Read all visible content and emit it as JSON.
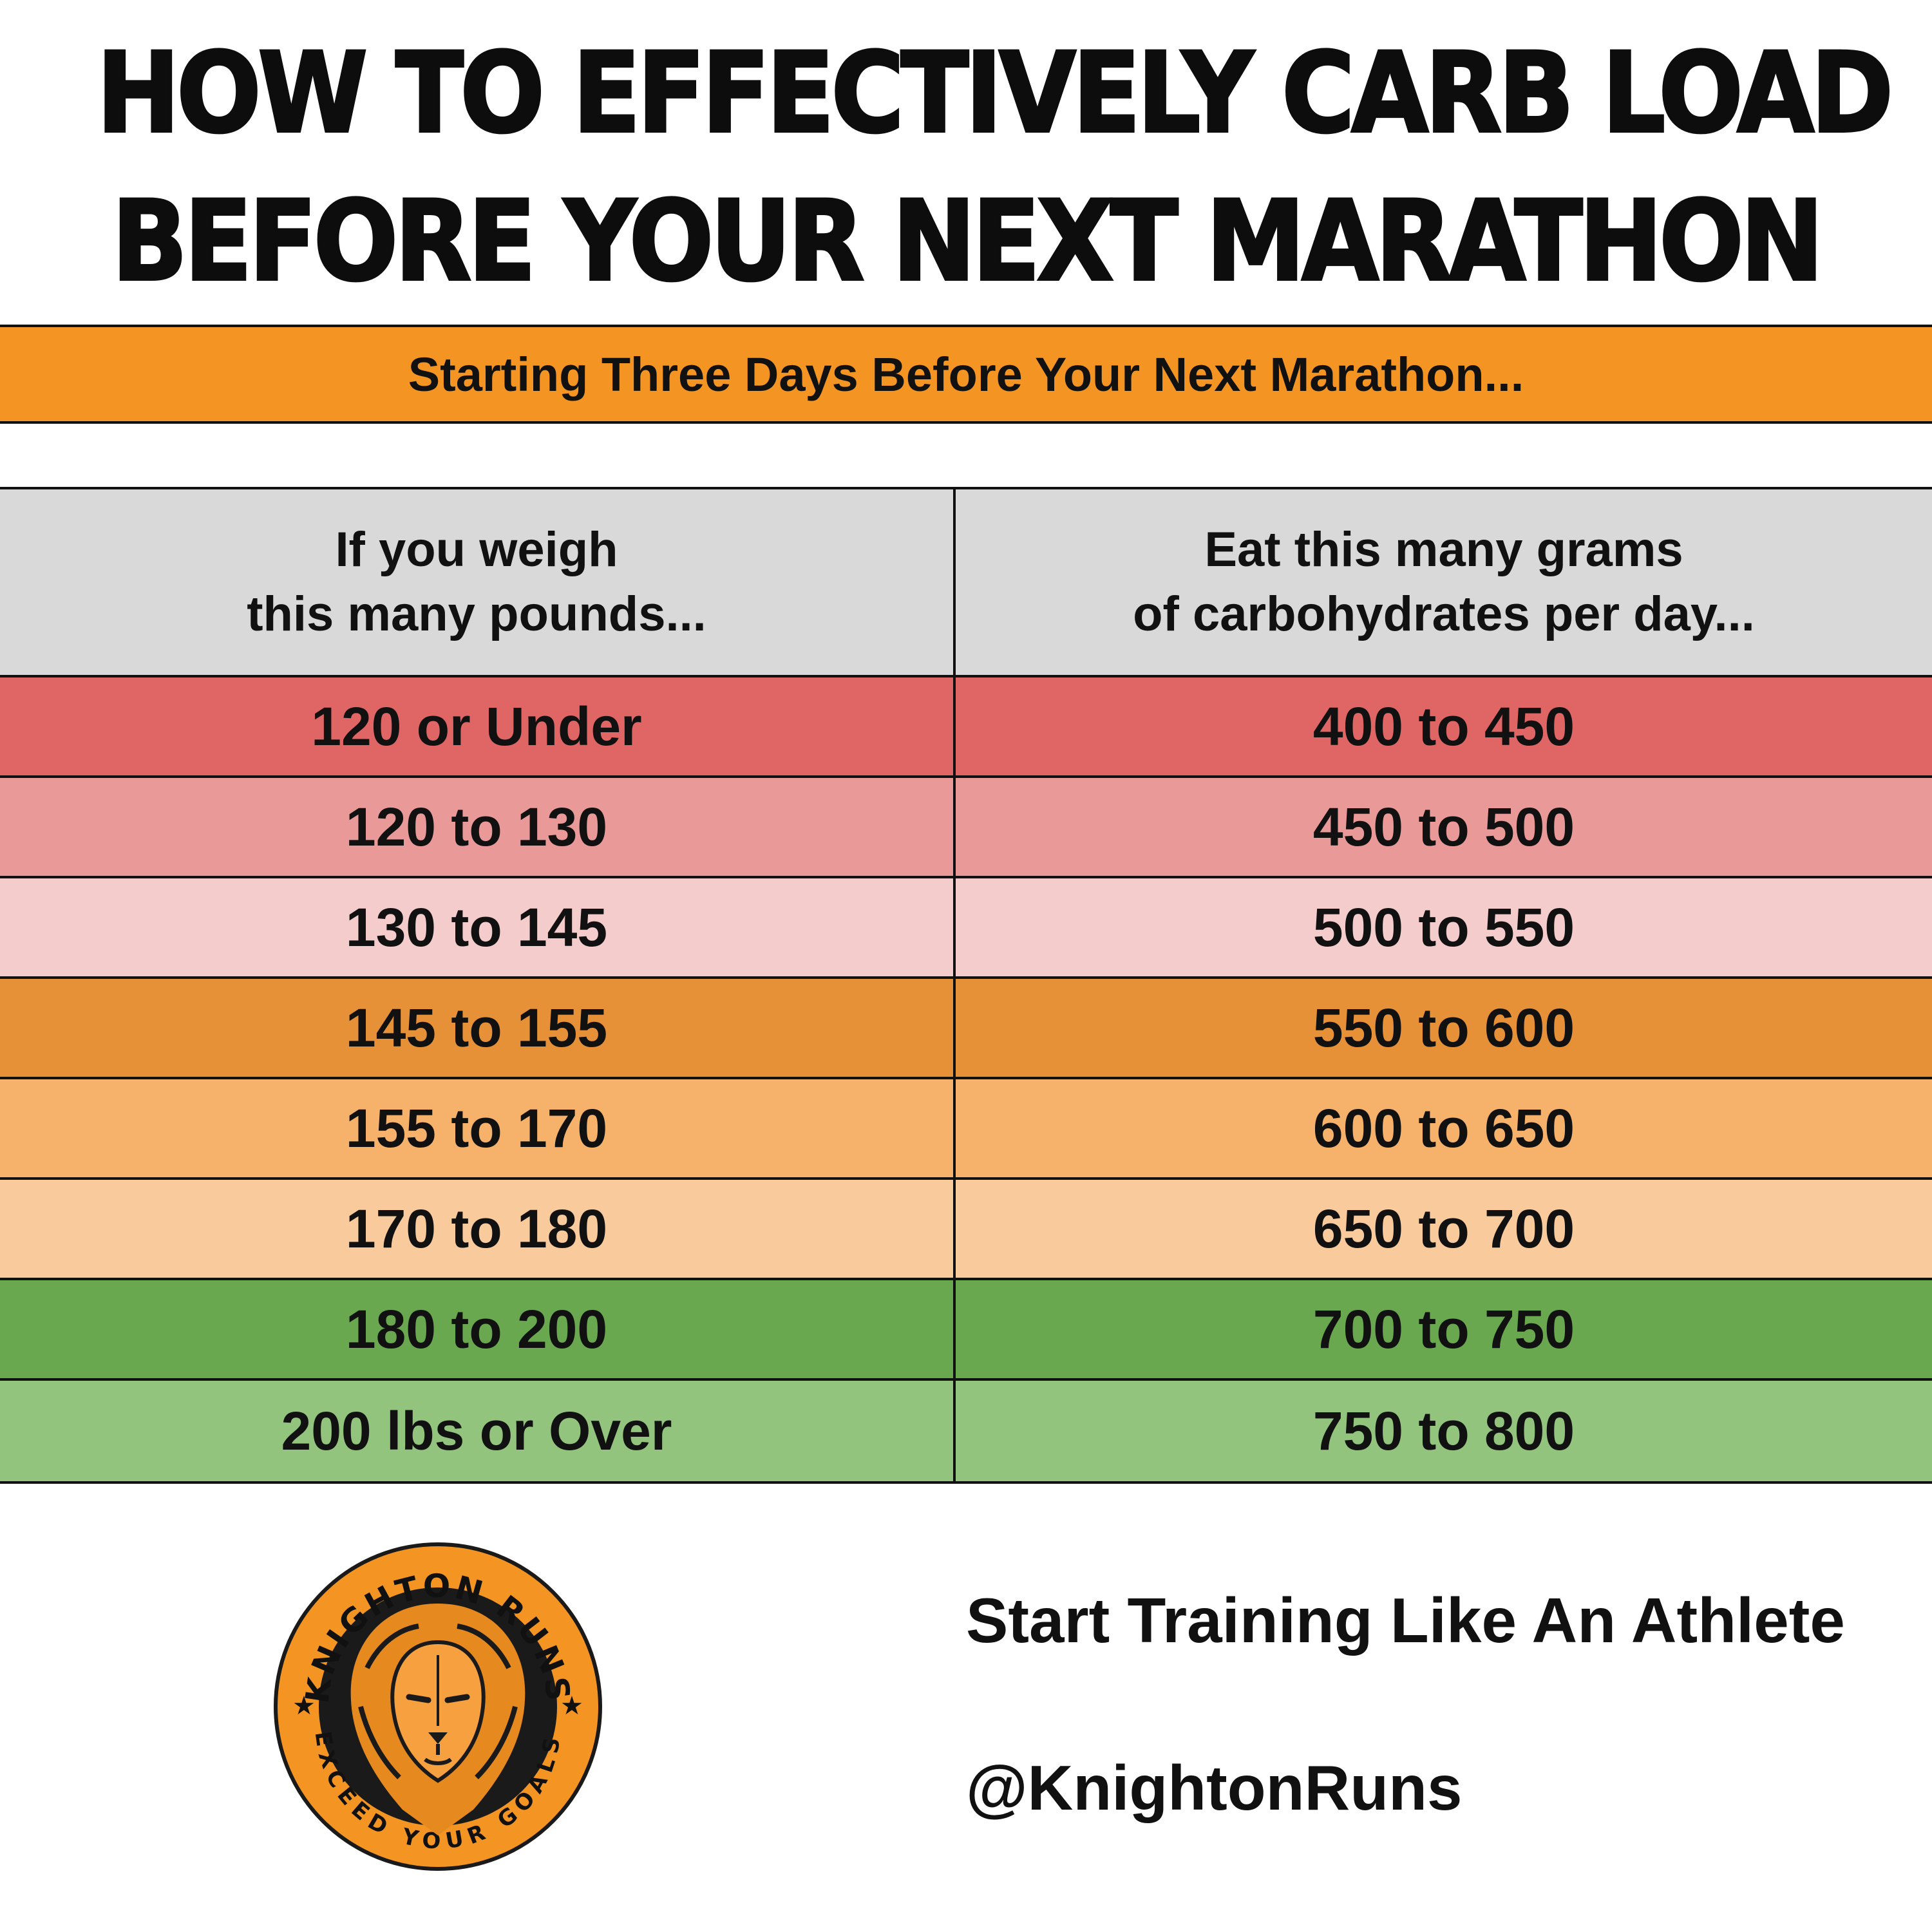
{
  "title": {
    "line1": "HOW TO EFFECTIVELY CARB LOAD",
    "line2": "BEFORE YOUR NEXT MARATHON"
  },
  "banner": {
    "text": "Starting Three Days Before Your Next Marathon..."
  },
  "table": {
    "headers": [
      "If you weigh\nthis many pounds...",
      "Eat this many grams\nof carbohydrates per day..."
    ],
    "rows": [
      {
        "weight": "120 or Under",
        "carbs": "400 to 450",
        "color": "#e06666"
      },
      {
        "weight": "120 to 130",
        "carbs": "450 to 500",
        "color": "#ea9999"
      },
      {
        "weight": "130 to 145",
        "carbs": "500 to 550",
        "color": "#f4cccc"
      },
      {
        "weight": "145 to 155",
        "carbs": "550 to 600",
        "color": "#e69138"
      },
      {
        "weight": "155 to 170",
        "carbs": "600 to 650",
        "color": "#f6b26b"
      },
      {
        "weight": "170 to 180",
        "carbs": "650 to 700",
        "color": "#f9cb9c"
      },
      {
        "weight": "180 to 200",
        "carbs": "700 to 750",
        "color": "#6aa84f"
      },
      {
        "weight": "200 lbs or Over",
        "carbs": "750 to 800",
        "color": "#93c47d"
      }
    ]
  },
  "logo": {
    "top_text": "KNIGHTON RUNS",
    "bottom_text": "EXCEED YOUR GOALS",
    "icon": "lion-icon",
    "ring_color": "#f39423"
  },
  "footer": {
    "tagline": "Start Training Like An Athlete",
    "handle": "@KnightonRuns"
  }
}
